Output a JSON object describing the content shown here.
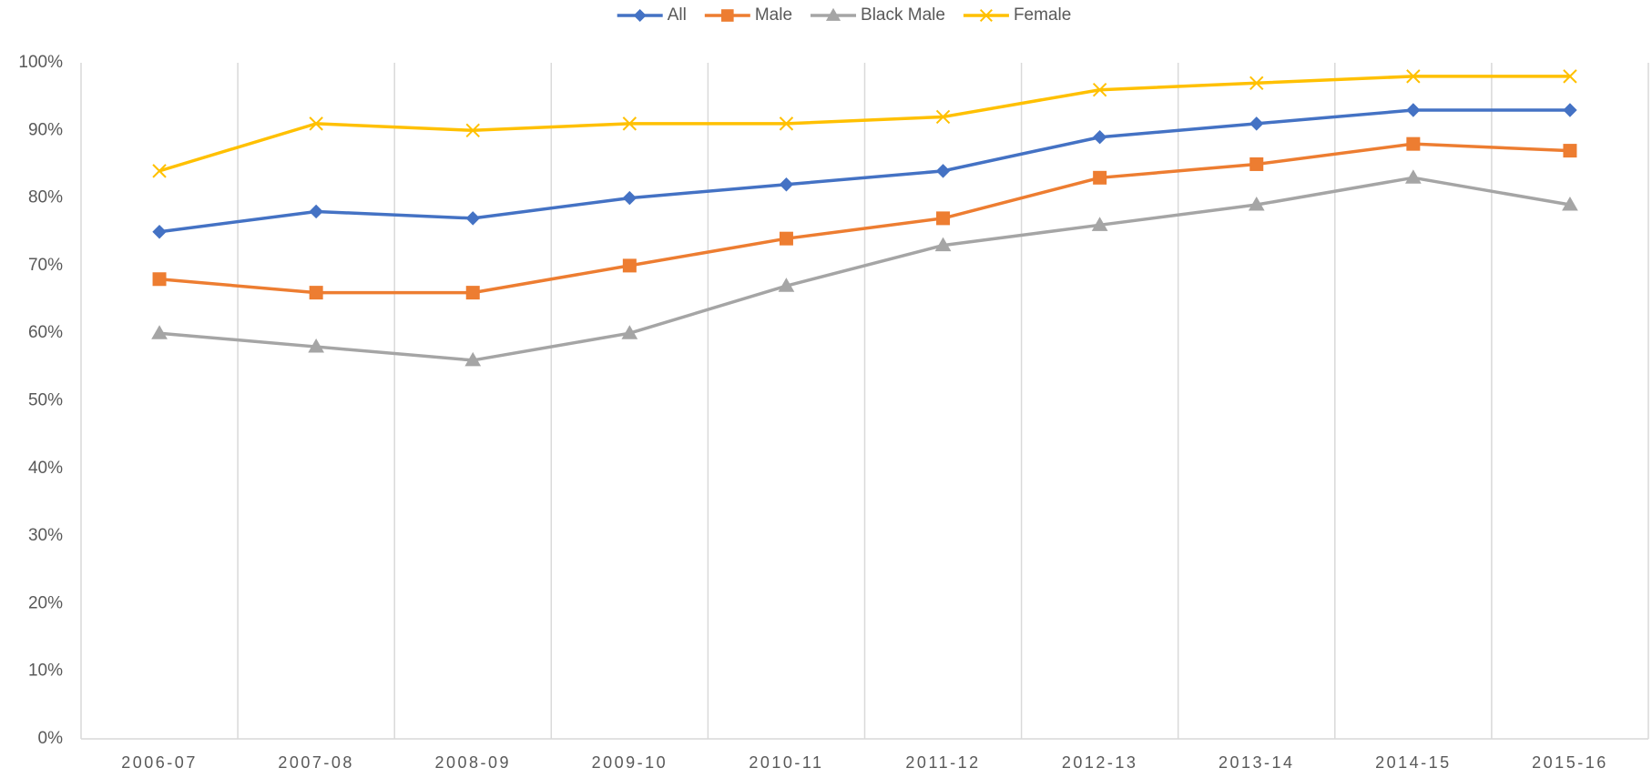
{
  "chart_data": {
    "type": "line",
    "categories": [
      "2006-07",
      "2007-08",
      "2008-09",
      "2009-10",
      "2010-11",
      "2011-12",
      "2012-13",
      "2013-14",
      "2014-15",
      "2015-16"
    ],
    "series": [
      {
        "name": "All",
        "color": "#4472c4",
        "marker": "diamond",
        "values": [
          75,
          78,
          77,
          80,
          82,
          84,
          89,
          91,
          93,
          93
        ]
      },
      {
        "name": "Male",
        "color": "#ed7d31",
        "marker": "square",
        "values": [
          68,
          66,
          66,
          70,
          74,
          77,
          83,
          85,
          88,
          87
        ]
      },
      {
        "name": "Black Male",
        "color": "#a5a5a5",
        "marker": "triangle",
        "values": [
          60,
          58,
          56,
          60,
          67,
          73,
          76,
          79,
          83,
          79
        ]
      },
      {
        "name": "Female",
        "color": "#ffc000",
        "marker": "x",
        "values": [
          84,
          91,
          90,
          91,
          91,
          92,
          96,
          97,
          98,
          98
        ]
      }
    ],
    "ylim": [
      0,
      100
    ],
    "yticks": [
      {
        "value": 0,
        "label": "0%"
      },
      {
        "value": 10,
        "label": "10%"
      },
      {
        "value": 20,
        "label": "20%"
      },
      {
        "value": 30,
        "label": "30%"
      },
      {
        "value": 40,
        "label": "40%"
      },
      {
        "value": 50,
        "label": "50%"
      },
      {
        "value": 60,
        "label": "60%"
      },
      {
        "value": 70,
        "label": "70%"
      },
      {
        "value": 80,
        "label": "80%"
      },
      {
        "value": 90,
        "label": "90%"
      },
      {
        "value": 100,
        "label": "100%"
      }
    ],
    "legend": "top"
  }
}
